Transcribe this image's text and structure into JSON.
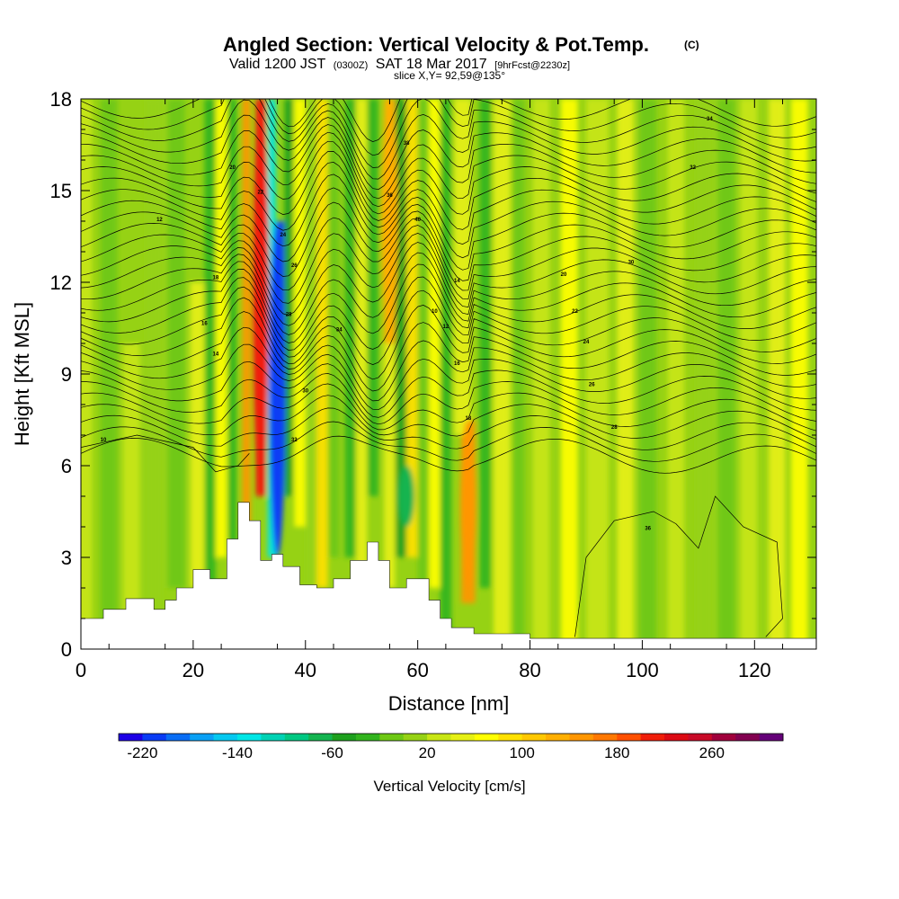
{
  "chart_data": {
    "type": "heatmap",
    "title": {
      "main": "Angled Section: Vertical Velocity & Pot.Temp.",
      "unit": "(C)",
      "valid_prefix": "Valid 1200 JST",
      "valid_z": "(0300Z)",
      "valid_date": "SAT 18 Mar 2017",
      "valid_fcst": "[9hrFcst@2230z]",
      "slice": "slice X,Y= 92,59@135°"
    },
    "xlabel": "Distance [nm]",
    "ylabel": "Height [Kft MSL]",
    "xlim": [
      0,
      131
    ],
    "ylim": [
      0,
      18
    ],
    "xticks": [
      0,
      20,
      40,
      60,
      80,
      100,
      120
    ],
    "yticks": [
      0,
      3,
      6,
      9,
      12,
      15,
      18
    ],
    "colorbar": {
      "label": "Vertical Velocity [cm/s]",
      "tick_labels": [
        -220,
        -140,
        -60,
        20,
        100,
        180,
        260
      ],
      "levels": [
        -240,
        -220,
        -200,
        -180,
        -160,
        -140,
        -120,
        -100,
        -80,
        -60,
        -40,
        -20,
        0,
        20,
        40,
        60,
        80,
        100,
        120,
        140,
        160,
        180,
        200,
        220,
        240,
        260,
        280,
        300
      ],
      "colors": [
        "#1e00e6",
        "#0a3cf5",
        "#0a6ef5",
        "#0aa0f5",
        "#05c8f0",
        "#00e6e6",
        "#00d2b4",
        "#00c882",
        "#14b450",
        "#1ea01e",
        "#32b41e",
        "#6ec814",
        "#96d214",
        "#c8e614",
        "#e6f014",
        "#ffff00",
        "#ffe100",
        "#ffc800",
        "#ffaf00",
        "#ff9600",
        "#ff7800",
        "#ff5000",
        "#f01e0a",
        "#dc0a14",
        "#c80a28",
        "#a0003c",
        "#820050",
        "#640078"
      ]
    },
    "terrain_kft": [
      [
        0,
        1.0
      ],
      [
        4,
        1.3
      ],
      [
        8,
        1.65
      ],
      [
        12,
        1.65
      ],
      [
        13,
        1.3
      ],
      [
        15,
        1.6
      ],
      [
        17,
        2.0
      ],
      [
        20,
        2.6
      ],
      [
        23,
        2.3
      ],
      [
        26,
        3.6
      ],
      [
        28,
        4.8
      ],
      [
        30,
        4.2
      ],
      [
        32,
        2.9
      ],
      [
        34,
        3.1
      ],
      [
        36,
        2.7
      ],
      [
        39,
        2.1
      ],
      [
        42,
        2.0
      ],
      [
        45,
        2.3
      ],
      [
        48,
        2.9
      ],
      [
        51,
        3.5
      ],
      [
        53,
        2.9
      ],
      [
        55,
        2.0
      ],
      [
        58,
        2.3
      ],
      [
        60,
        2.3
      ],
      [
        62,
        1.6
      ],
      [
        64,
        1.0
      ],
      [
        66,
        0.7
      ],
      [
        70,
        0.5
      ],
      [
        80,
        0.35
      ],
      [
        131,
        0.35
      ]
    ],
    "pot_temp_contour_label_values": [
      10,
      12,
      14,
      16,
      18,
      20,
      22,
      24,
      26,
      28,
      30,
      32,
      34,
      36,
      38,
      40
    ],
    "updraft_cores": [
      {
        "x": 32,
        "z_min": 5,
        "z_max": 18,
        "value": 200
      },
      {
        "x": 55,
        "z_min": 10,
        "z_max": 18,
        "value": 120
      },
      {
        "x": 69,
        "z_min": 2,
        "z_max": 7.5,
        "value": 140
      }
    ],
    "downdraft_cores": [
      {
        "x": 35,
        "z_min": 3,
        "z_max": 14,
        "value": -220
      },
      {
        "x": 58,
        "z_min": 4,
        "z_max": 6,
        "value": -80
      }
    ]
  }
}
